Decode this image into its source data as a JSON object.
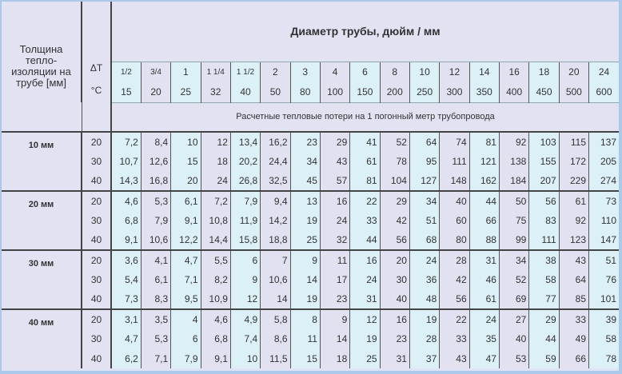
{
  "header": {
    "thickness_label": "Толщина тепло- изоляции на трубе [мм]",
    "delta_t_label": "ΔT",
    "delta_t_unit": "°C",
    "title": "Диаметр трубы, дюйм / мм",
    "subtitle": "Расчетные тепловые потери на 1 погонный метр трубопровода"
  },
  "diameters_inch": [
    "1/2",
    "3/4",
    "1",
    "1 1/4",
    "1 1/2",
    "2",
    "3",
    "4",
    "6",
    "8",
    "10",
    "12",
    "14",
    "16",
    "18",
    "20",
    "24"
  ],
  "diameters_mm": [
    "15",
    "20",
    "25",
    "32",
    "40",
    "50",
    "80",
    "100",
    "150",
    "200",
    "250",
    "300",
    "350",
    "400",
    "450",
    "500",
    "600"
  ],
  "colors": {
    "column_a": "#dcf0f8",
    "column_b": "#e2e1f1",
    "frame": "#a9c8ea"
  },
  "groups": [
    {
      "label": "10 мм",
      "rows": [
        {
          "dt": "20",
          "values": [
            "7,2",
            "8,4",
            "10",
            "12",
            "13,4",
            "16,2",
            "23",
            "29",
            "41",
            "52",
            "64",
            "74",
            "81",
            "92",
            "103",
            "115",
            "137"
          ]
        },
        {
          "dt": "30",
          "values": [
            "10,7",
            "12,6",
            "15",
            "18",
            "20,2",
            "24,4",
            "34",
            "43",
            "61",
            "78",
            "95",
            "111",
            "121",
            "138",
            "155",
            "172",
            "205"
          ]
        },
        {
          "dt": "40",
          "values": [
            "14,3",
            "16,8",
            "20",
            "24",
            "26,8",
            "32,5",
            "45",
            "57",
            "81",
            "104",
            "127",
            "148",
            "162",
            "184",
            "207",
            "229",
            "274"
          ]
        }
      ]
    },
    {
      "label": "20 мм",
      "rows": [
        {
          "dt": "20",
          "values": [
            "4,6",
            "5,3",
            "6,1",
            "7,2",
            "7,9",
            "9,4",
            "13",
            "16",
            "22",
            "29",
            "34",
            "40",
            "44",
            "50",
            "56",
            "61",
            "73"
          ]
        },
        {
          "dt": "30",
          "values": [
            "6,8",
            "7,9",
            "9,1",
            "10,8",
            "11,9",
            "14,2",
            "19",
            "24",
            "33",
            "42",
            "51",
            "60",
            "66",
            "75",
            "83",
            "92",
            "110"
          ]
        },
        {
          "dt": "40",
          "values": [
            "9,1",
            "10,6",
            "12,2",
            "14,4",
            "15,8",
            "18,8",
            "25",
            "32",
            "44",
            "56",
            "68",
            "80",
            "88",
            "99",
            "111",
            "123",
            "147"
          ]
        }
      ]
    },
    {
      "label": "30 мм",
      "rows": [
        {
          "dt": "20",
          "values": [
            "3,6",
            "4,1",
            "4,7",
            "5,5",
            "6",
            "7",
            "9",
            "11",
            "16",
            "20",
            "24",
            "28",
            "31",
            "34",
            "38",
            "43",
            "51"
          ]
        },
        {
          "dt": "30",
          "values": [
            "5,4",
            "6,1",
            "7,1",
            "8,2",
            "9",
            "10,6",
            "14",
            "17",
            "24",
            "30",
            "36",
            "42",
            "46",
            "52",
            "58",
            "64",
            "76"
          ]
        },
        {
          "dt": "40",
          "values": [
            "7,3",
            "8,3",
            "9,5",
            "10,9",
            "12",
            "14",
            "19",
            "23",
            "31",
            "40",
            "48",
            "56",
            "61",
            "69",
            "77",
            "85",
            "101"
          ]
        }
      ]
    },
    {
      "label": "40 мм",
      "rows": [
        {
          "dt": "20",
          "values": [
            "3,1",
            "3,5",
            "4",
            "4,6",
            "4,9",
            "5,8",
            "8",
            "9",
            "12",
            "16",
            "19",
            "22",
            "24",
            "27",
            "29",
            "33",
            "39"
          ]
        },
        {
          "dt": "30",
          "values": [
            "4,7",
            "5,3",
            "6",
            "6,8",
            "7,4",
            "8,6",
            "11",
            "14",
            "19",
            "23",
            "28",
            "33",
            "35",
            "40",
            "44",
            "49",
            "58"
          ]
        },
        {
          "dt": "40",
          "values": [
            "6,2",
            "7,1",
            "7,9",
            "9,1",
            "10",
            "11,5",
            "15",
            "18",
            "25",
            "31",
            "37",
            "43",
            "47",
            "53",
            "59",
            "66",
            "78"
          ]
        }
      ]
    }
  ]
}
